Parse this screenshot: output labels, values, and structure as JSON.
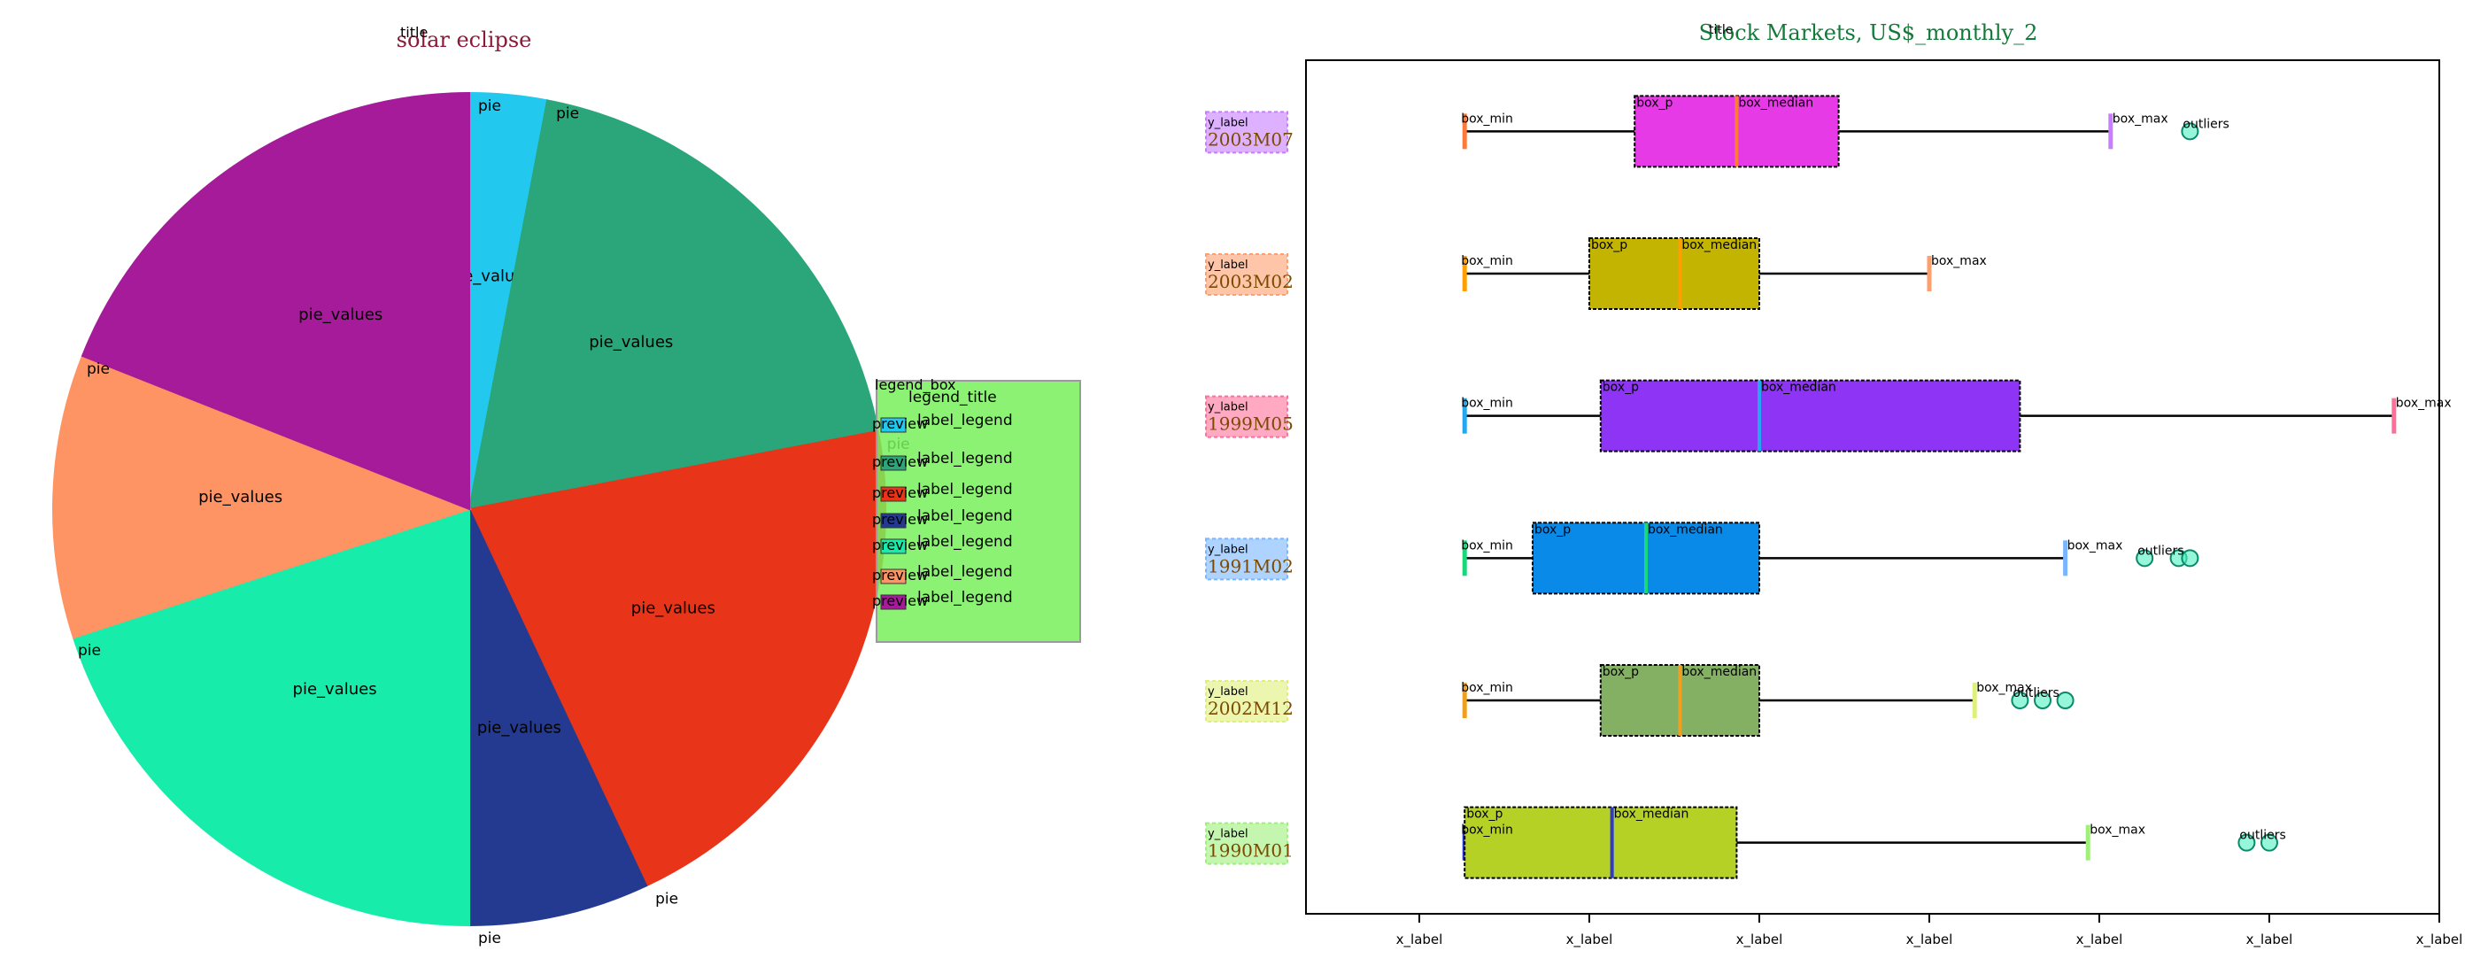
{
  "chart_data": [
    {
      "type": "pie",
      "title": "solar eclipse",
      "legend": {
        "title": "legend_title",
        "placement": "right",
        "entries": [
          "label_legend",
          "label_legend",
          "label_legend",
          "label_legend",
          "label_legend",
          "label_legend",
          "label_legend"
        ]
      },
      "slices": [
        {
          "label": "label_legend",
          "value": 3.0,
          "color": "#22c8ee"
        },
        {
          "label": "label_legend",
          "value": 19.0,
          "color": "#2aa67a"
        },
        {
          "label": "label_legend",
          "value": 21.0,
          "color": "#e83418"
        },
        {
          "label": "label_legend",
          "value": 7.0,
          "color": "#233a90"
        },
        {
          "label": "label_legend",
          "value": 20.0,
          "color": "#17ecaa"
        },
        {
          "label": "label_legend",
          "value": 11.0,
          "color": "#fe9363"
        },
        {
          "label": "label_legend",
          "value": 19.0,
          "color": "#a51b99"
        }
      ],
      "slice_tag": "pie",
      "value_tag": "pie_values",
      "preview_tag": "preview",
      "legend_box_tag": "legend_box",
      "title_tag": "title"
    },
    {
      "type": "box",
      "title": "Stock Markets, US$_monthly_2",
      "categories": [
        "2003M07",
        "2003M02",
        "1999M05",
        "1991M02",
        "2002M12",
        "1990M01"
      ],
      "xlim": [
        0,
        100
      ],
      "xticks": [
        10,
        25,
        40,
        55,
        70,
        85,
        100
      ],
      "boxes": [
        {
          "label": "2003M07",
          "min": 14,
          "q1": 29,
          "median": 38,
          "q3": 47,
          "max": 71,
          "outliers": [
            78
          ],
          "color": "#e63ae6",
          "median_color": "#ff7a3a",
          "label_color": "#c77dff"
        },
        {
          "label": "2003M02",
          "min": 14,
          "q1": 25,
          "median": 33,
          "q3": 40,
          "max": 55,
          "outliers": [],
          "color": "#c2b400",
          "median_color": "#ff9f00",
          "label_color": "#ff9f70"
        },
        {
          "label": "1999M05",
          "min": 14,
          "q1": 26,
          "median": 40,
          "q3": 63,
          "max": 96,
          "outliers": [],
          "color": "#8e35f5",
          "median_color": "#22a7f0",
          "label_color": "#ff6f9a"
        },
        {
          "label": "1991M02",
          "min": 14,
          "q1": 20,
          "median": 30,
          "q3": 40,
          "max": 67,
          "outliers": [
            74,
            77,
            78
          ],
          "color": "#0a8ae8",
          "median_color": "#18d87a",
          "label_color": "#7ab6ff"
        },
        {
          "label": "2002M12",
          "min": 14,
          "q1": 26,
          "median": 33,
          "q3": 40,
          "max": 59,
          "outliers": [
            63,
            65,
            67
          ],
          "color": "#84b064",
          "median_color": "#f0a020",
          "label_color": "#dff07a"
        },
        {
          "label": "1990M01",
          "min": 14,
          "q1": 14,
          "median": 27,
          "q3": 38,
          "max": 69,
          "outliers": [
            83,
            85
          ],
          "color": "#b6d126",
          "median_color": "#2d3ad0",
          "label_color": "#9ff07a"
        }
      ],
      "tags": {
        "title": "title",
        "box_p": "box_p",
        "box_min": "box_min",
        "box_max": "box_max",
        "box_median": "box_median",
        "outliers": "outliers",
        "y_label": "y_label",
        "x_label": "x_label"
      }
    }
  ]
}
